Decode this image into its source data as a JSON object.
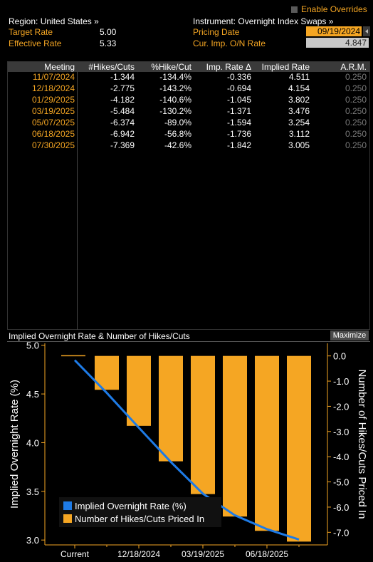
{
  "header": {
    "enable_overrides": "Enable Overrides",
    "region": "Region: United States »",
    "instrument": "Instrument: Overnight Index Swaps »",
    "target_rate_label": "Target Rate",
    "target_rate_value": "5.00",
    "effective_rate_label": "Effective Rate",
    "effective_rate_value": "5.33",
    "pricing_date_label": "Pricing Date",
    "pricing_date_value": "09/19/2024",
    "cur_imp_label": "Cur. Imp. O/N Rate",
    "cur_imp_value": "4.847"
  },
  "table": {
    "columns": [
      "Meeting",
      "#Hikes/Cuts",
      "%Hike/Cut",
      "Imp. Rate Δ",
      "Implied Rate",
      "A.R.M."
    ],
    "rows": [
      [
        "11/07/2024",
        "-1.344",
        "-134.4%",
        "-0.336",
        "4.511",
        "0.250"
      ],
      [
        "12/18/2024",
        "-2.775",
        "-143.2%",
        "-0.694",
        "4.154",
        "0.250"
      ],
      [
        "01/29/2025",
        "-4.182",
        "-140.6%",
        "-1.045",
        "3.802",
        "0.250"
      ],
      [
        "03/19/2025",
        "-5.484",
        "-130.2%",
        "-1.371",
        "3.476",
        "0.250"
      ],
      [
        "05/07/2025",
        "-6.374",
        "-89.0%",
        "-1.594",
        "3.254",
        "0.250"
      ],
      [
        "06/18/2025",
        "-6.942",
        "-56.8%",
        "-1.736",
        "3.112",
        "0.250"
      ],
      [
        "07/30/2025",
        "-7.369",
        "-42.6%",
        "-1.842",
        "3.005",
        "0.250"
      ]
    ]
  },
  "chart_panel": {
    "title": "Implied Overnight Rate & Number of Hikes/Cuts",
    "maximize": "Maximize"
  },
  "chart_data": {
    "type": "bar",
    "categories": [
      "Current",
      "11/07/2024",
      "12/18/2024",
      "01/29/2025",
      "03/19/2025",
      "05/07/2025",
      "06/18/2025",
      "07/30/2025"
    ],
    "x_tick_labels": [
      "Current",
      "12/18/2024",
      "03/19/2025",
      "06/18/2025"
    ],
    "series": [
      {
        "name": "Implied Overnight Rate (%)",
        "type": "line",
        "axis": "left",
        "color": "#1e7be6",
        "values": [
          4.847,
          4.511,
          4.154,
          3.802,
          3.476,
          3.254,
          3.112,
          3.005
        ]
      },
      {
        "name": "Number of Hikes/Cuts Priced In",
        "type": "bar",
        "axis": "right",
        "color": "#f5a623",
        "values": [
          0,
          -1.344,
          -2.775,
          -4.182,
          -5.484,
          -6.374,
          -6.942,
          -7.369
        ]
      }
    ],
    "ylabel": "Implied Overnight Rate (%)",
    "y2label": "Number of Hikes/Cuts Priced In",
    "ylim": [
      2.95,
      5.02
    ],
    "y2lim": [
      -7.5,
      0.5
    ],
    "y_ticks": [
      "5.0",
      "4.5",
      "4.0",
      "3.5",
      "3.0"
    ],
    "y2_ticks": [
      "0.0",
      "-1.0",
      "-2.0",
      "-3.0",
      "-4.0",
      "-5.0",
      "-6.0",
      "-7.0"
    ],
    "legend_position": "bottom-left",
    "grid": false
  }
}
